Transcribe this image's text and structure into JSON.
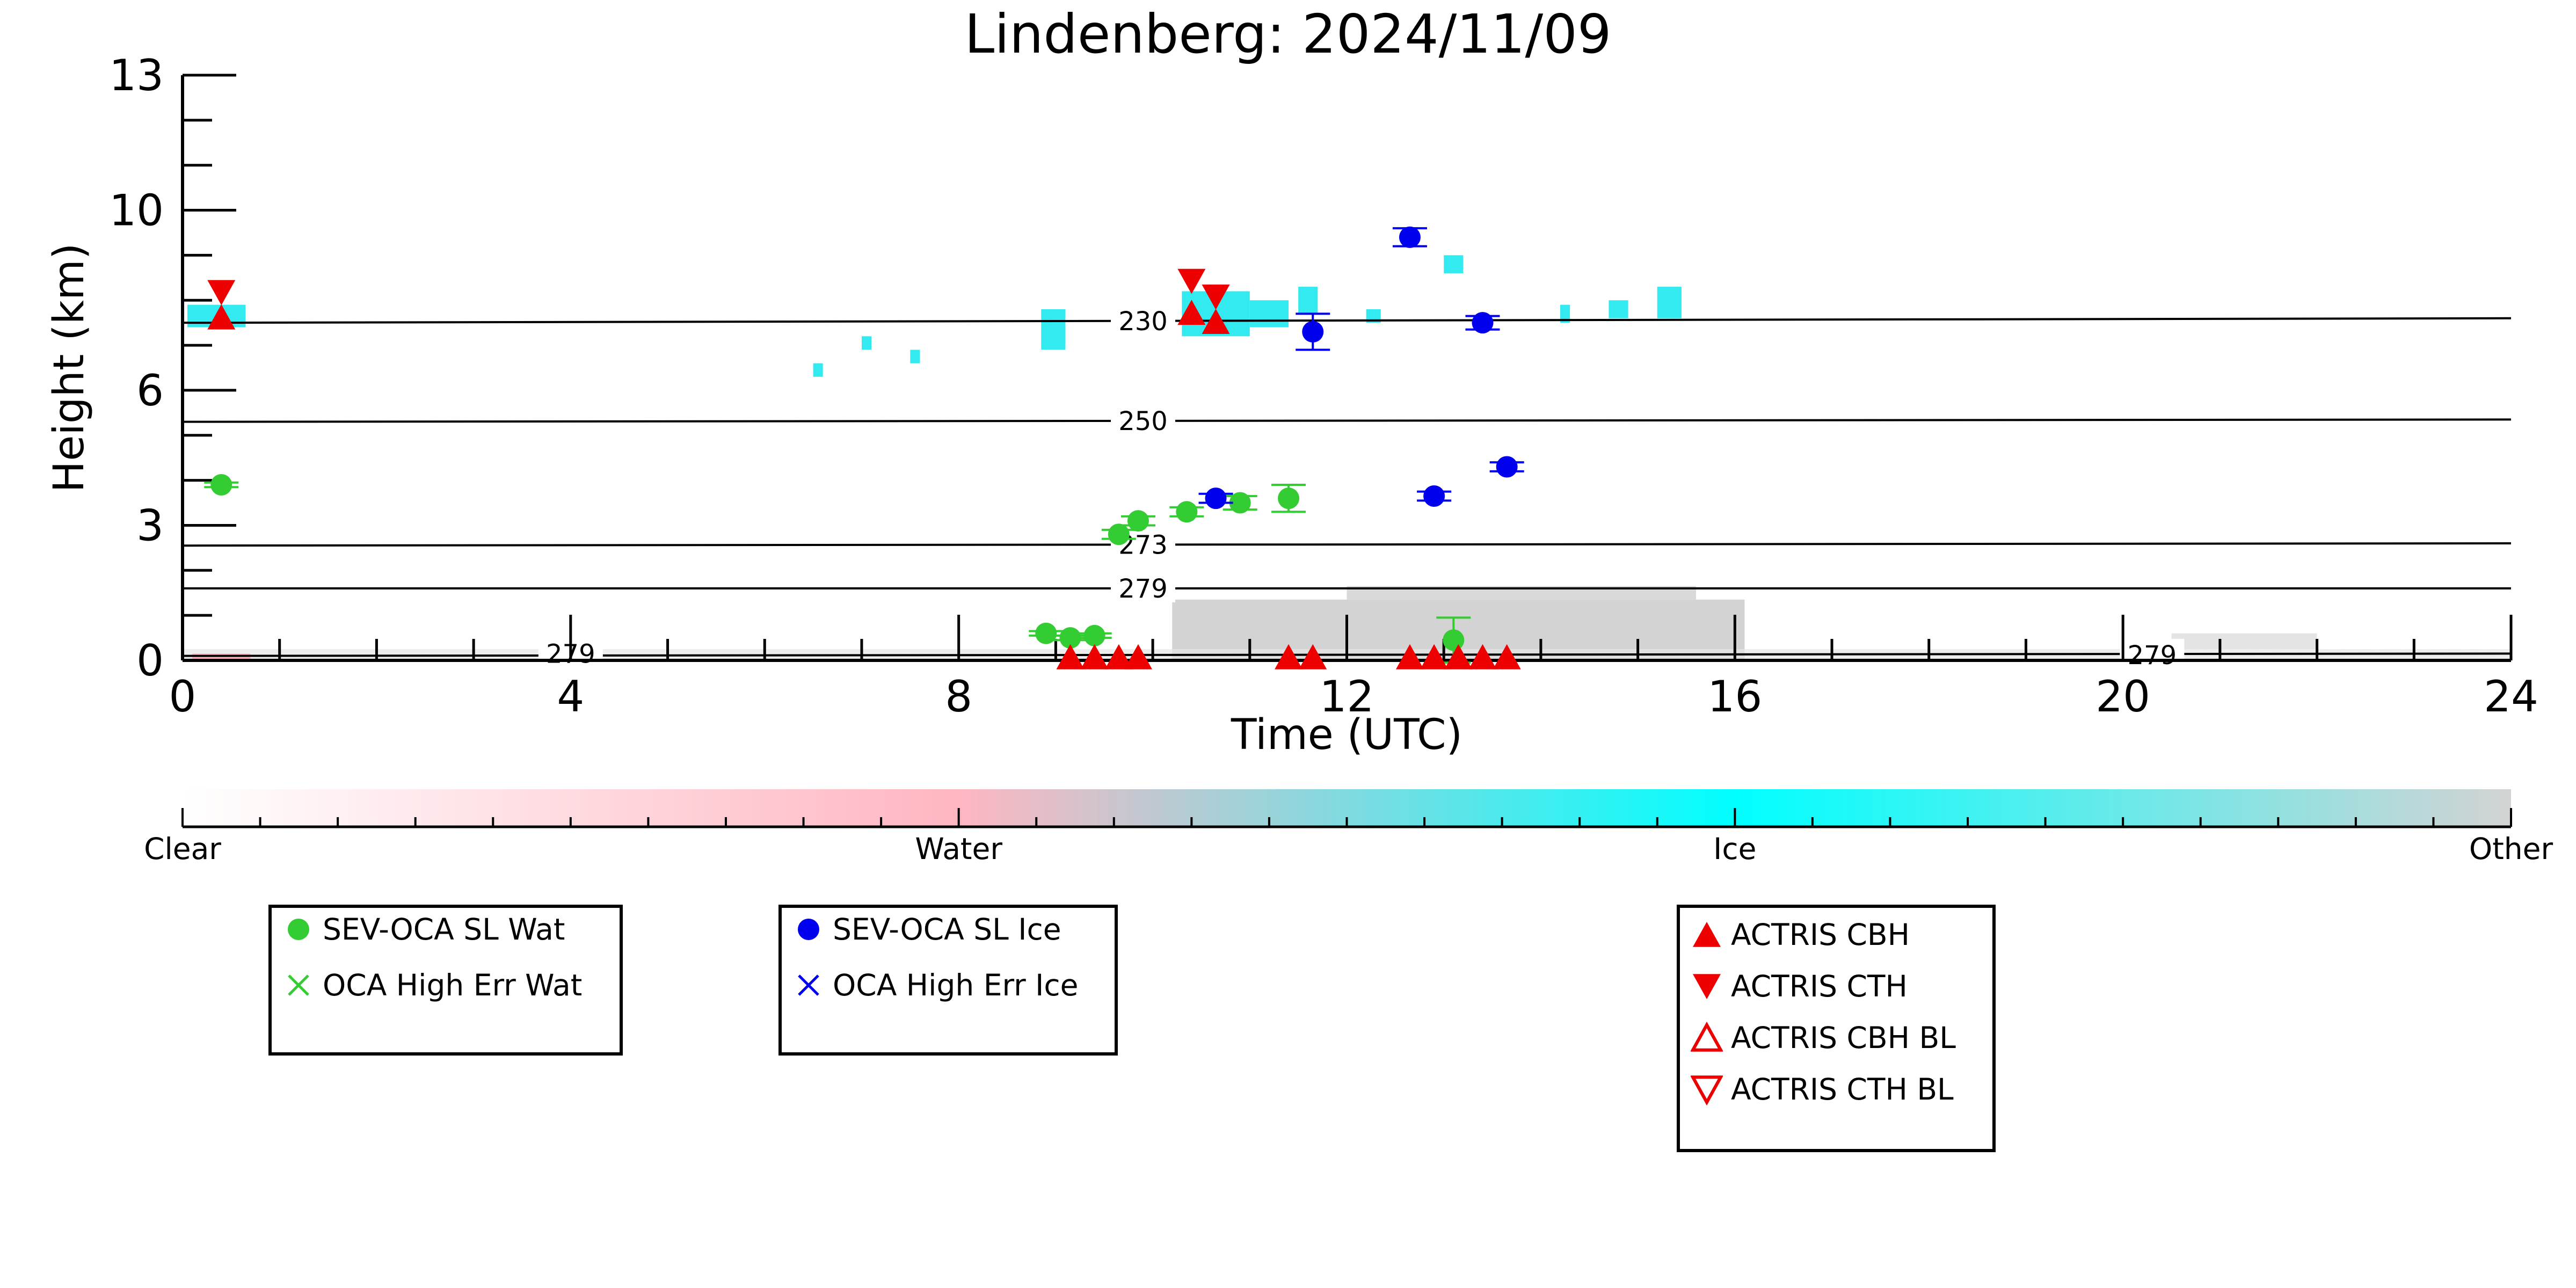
{
  "title": "Lindenberg: 2024/11/09",
  "chart_data": {
    "type": "scatter",
    "title": "Lindenberg: 2024/11/09",
    "xlabel": "Time (UTC)",
    "ylabel": "Height (km)",
    "xlim": [
      0,
      24
    ],
    "ylim": [
      0,
      13
    ],
    "xticks": [
      "0",
      "4",
      "8",
      "12",
      "16",
      "20",
      "24"
    ],
    "yticks": [
      "0",
      "3",
      "6",
      "10",
      "13"
    ],
    "isotherms": [
      {
        "label": "230",
        "left_km": 7.5,
        "right_km": 7.6
      },
      {
        "label": "250",
        "left_km": 5.3,
        "right_km": 5.35
      },
      {
        "label": "273",
        "left_km": 2.55,
        "right_km": 2.6
      },
      {
        "label": "279",
        "left_km": 1.6,
        "right_km": 1.6
      },
      {
        "label": "279",
        "left_km": 0.1,
        "right_km": 0.15
      }
    ],
    "series": [
      {
        "name": "SEV-OCA SL Wat",
        "color": "#33cc33",
        "marker": "circle",
        "points": [
          [
            0.4,
            3.9,
            0.05
          ],
          [
            8.9,
            0.6,
            0.05
          ],
          [
            9.15,
            0.5,
            0.05
          ],
          [
            9.4,
            0.55,
            0.05
          ],
          [
            9.65,
            2.8,
            0.1
          ],
          [
            9.85,
            3.1,
            0.1
          ],
          [
            10.35,
            3.3,
            0.1
          ],
          [
            10.9,
            3.5,
            0.15
          ],
          [
            11.4,
            3.6,
            0.3
          ],
          [
            13.1,
            0.45,
            0.5
          ]
        ]
      },
      {
        "name": "OCA High Err Wat",
        "color": "#33cc33",
        "marker": "x",
        "points": []
      },
      {
        "name": "SEV-OCA SL Ice",
        "color": "#0000ee",
        "marker": "circle",
        "points": [
          [
            10.65,
            3.6,
            0.1
          ],
          [
            11.65,
            7.3,
            0.4
          ],
          [
            12.65,
            9.4,
            0.2
          ],
          [
            12.9,
            3.65,
            0.1
          ],
          [
            13.4,
            7.5,
            0.15
          ],
          [
            13.65,
            4.3,
            0.1
          ]
        ]
      },
      {
        "name": "OCA High Err Ice",
        "color": "#0000ee",
        "marker": "x",
        "points": []
      },
      {
        "name": "ACTRIS CBH",
        "color": "#ee0000",
        "marker": "triangle-up",
        "points": [
          [
            0.4,
            7.6
          ],
          [
            10.4,
            7.7
          ],
          [
            10.65,
            7.5
          ],
          [
            9.15,
            0.05
          ],
          [
            9.4,
            0.05
          ],
          [
            9.65,
            0.05
          ],
          [
            9.85,
            0.05
          ],
          [
            11.4,
            0.05
          ],
          [
            11.65,
            0.05
          ],
          [
            12.65,
            0.05
          ],
          [
            12.9,
            0.05
          ],
          [
            13.15,
            0.05
          ],
          [
            13.4,
            0.05
          ],
          [
            13.65,
            0.05
          ]
        ]
      },
      {
        "name": "ACTRIS CTH",
        "color": "#ee0000",
        "marker": "triangle-down",
        "points": [
          [
            0.4,
            8.2
          ],
          [
            10.4,
            8.45
          ],
          [
            10.65,
            8.1
          ]
        ]
      },
      {
        "name": "ACTRIS CBH BL",
        "color": "#ee0000",
        "marker": "triangle-up-open",
        "points": []
      },
      {
        "name": "ACTRIS CTH BL",
        "color": "#ee0000",
        "marker": "triangle-down-open",
        "points": []
      }
    ],
    "colorbar": {
      "labels": [
        "Clear",
        "Water",
        "Ice",
        "Other"
      ],
      "colors": [
        "#ffffff",
        "#ffb6c1",
        "#00ffff",
        "#d3d3d3"
      ]
    }
  },
  "legends": [
    {
      "items": [
        {
          "label": "SEV-OCA SL Wat",
          "marker": "circle",
          "color": "#33cc33"
        },
        {
          "label": "OCA High Err Wat",
          "marker": "x",
          "color": "#33cc33"
        }
      ]
    },
    {
      "items": [
        {
          "label": "SEV-OCA SL Ice",
          "marker": "circle",
          "color": "#0000ee"
        },
        {
          "label": "OCA High Err Ice",
          "marker": "x",
          "color": "#0000ee"
        }
      ]
    },
    {
      "items": [
        {
          "label": "ACTRIS CBH",
          "marker": "triangle-up",
          "color": "#ee0000"
        },
        {
          "label": "ACTRIS CTH",
          "marker": "triangle-down",
          "color": "#ee0000"
        },
        {
          "label": "ACTRIS CBH BL",
          "marker": "triangle-up-open",
          "color": "#ee0000"
        },
        {
          "label": "ACTRIS CTH BL",
          "marker": "triangle-down-open",
          "color": "#ee0000"
        }
      ]
    }
  ]
}
